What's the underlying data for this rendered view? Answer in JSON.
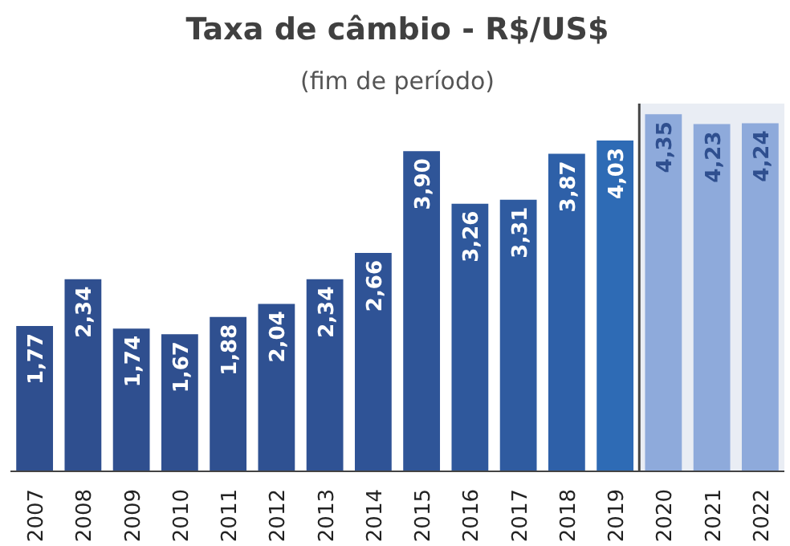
{
  "chart_data": {
    "type": "bar",
    "title": "Taxa de câmbio - R$/US$",
    "subtitle": "(fim de período)",
    "categories": [
      "2007",
      "2008",
      "2009",
      "2010",
      "2011",
      "2012",
      "2013",
      "2014",
      "2015",
      "2016",
      "2017",
      "2018",
      "2019",
      "2020",
      "2021",
      "2022"
    ],
    "values": [
      1.77,
      2.34,
      1.74,
      1.67,
      1.88,
      2.04,
      2.34,
      2.66,
      3.9,
      3.26,
      3.31,
      3.87,
      4.03,
      4.35,
      4.23,
      4.24
    ],
    "colors": [
      "#2f4f8f",
      "#2f4f8f",
      "#2f4f8f",
      "#2f4f8f",
      "#2f5090",
      "#2f5192",
      "#2f5294",
      "#2f5396",
      "#2f5598",
      "#2f589c",
      "#2f5ba0",
      "#2e60a8",
      "#2e6bb5",
      "#8eaadb",
      "#8eaadb",
      "#8eaadb"
    ],
    "value_labels": [
      "1,77",
      "2,34",
      "1,74",
      "1,67",
      "1,88",
      "2,04",
      "2,34",
      "2,66",
      "3,90",
      "3,26",
      "3,31",
      "3,87",
      "4,03",
      "4,35",
      "4,23",
      "4,24"
    ],
    "bands": [
      {
        "axis": "x",
        "from": "2020",
        "to": "2022",
        "color": "#e9edf4"
      }
    ],
    "grid": false
  }
}
